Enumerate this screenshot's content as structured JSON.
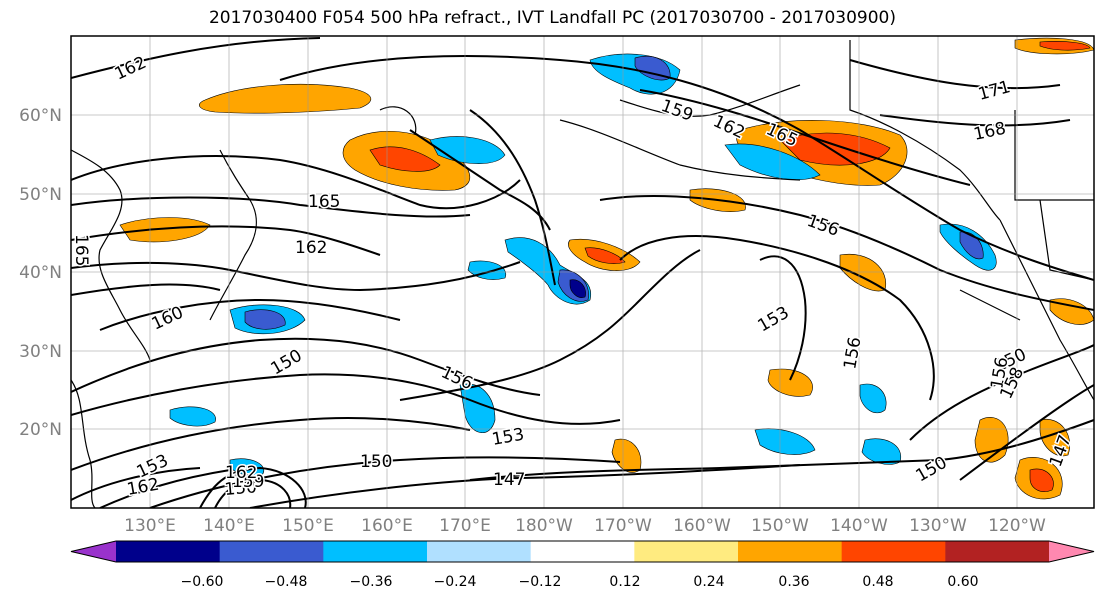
{
  "title": "2017030400 F054 500 hPa refract., IVT Landfall PC (2017030700 - 2017030900)",
  "map": {
    "lat_labels": [
      "60°N",
      "50°N",
      "40°N",
      "30°N",
      "20°N"
    ],
    "lon_labels": [
      "130°E",
      "140°E",
      "150°E",
      "160°E",
      "170°E",
      "180°W",
      "170°W",
      "160°W",
      "150°W",
      "140°W",
      "130°W",
      "120°W"
    ],
    "contour_labels": [
      "162",
      "165",
      "162",
      "165",
      "159",
      "162",
      "165",
      "171",
      "168",
      "156",
      "153",
      "156",
      "150",
      "150",
      "153",
      "156",
      "150",
      "147",
      "150",
      "147",
      "153",
      "162",
      "156",
      "150",
      "158",
      "160",
      "159",
      "162"
    ]
  },
  "colorbar": {
    "colors": [
      "#9932cc",
      "#00008b",
      "#3a5bd0",
      "#00bfff",
      "#b0e0ff",
      "#ffffff",
      "#ffeb80",
      "#ffa500",
      "#ff4500",
      "#b22222",
      "#ff88b0"
    ],
    "tick_labels": [
      "−0.60",
      "−0.48",
      "−0.36",
      "−0.24",
      "−0.12",
      "0.12",
      "0.24",
      "0.36",
      "0.48",
      "0.60"
    ]
  }
}
